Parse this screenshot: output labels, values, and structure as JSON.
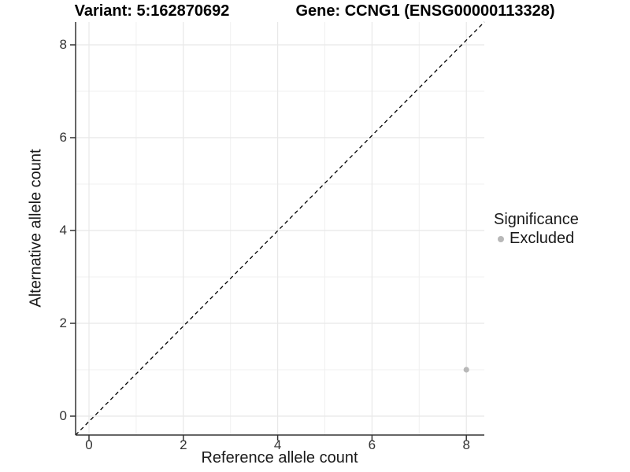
{
  "chart_data": {
    "type": "scatter",
    "title_left": "Variant: 5:162870692",
    "title_right": "Gene: CCNG1 (ENSG00000113328)",
    "xlabel": "Reference allele count",
    "ylabel": "Alternative allele count",
    "x_ticks": [
      0,
      2,
      4,
      6,
      8
    ],
    "y_ticks": [
      0,
      2,
      4,
      6,
      8
    ],
    "x_minor": [
      1,
      3,
      5,
      7
    ],
    "y_minor": [
      1,
      3,
      5,
      7
    ],
    "xlim": [
      -0.3,
      8.4
    ],
    "ylim": [
      -0.4,
      8.5
    ],
    "grid": true,
    "reference_line": {
      "style": "dashed",
      "slope": 1,
      "intercept": 0,
      "color": "#000000"
    },
    "series": [
      {
        "name": "Excluded",
        "color": "#b8b8b8",
        "points": [
          {
            "x": 8,
            "y": 1
          }
        ]
      }
    ],
    "legend": {
      "title": "Significance",
      "position": "right",
      "entries": [
        {
          "label": "Excluded",
          "color": "#b8b8b8"
        }
      ]
    },
    "colors": {
      "grid_major": "#e8e8e8",
      "grid_minor": "#f0f0f0",
      "axis": "#333333",
      "tick_text": "#333333",
      "point": "#b8b8b8"
    }
  }
}
